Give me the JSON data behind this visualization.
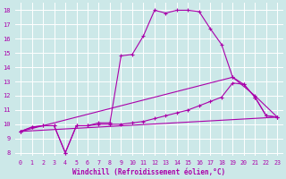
{
  "xlabel": "Windchill (Refroidissement éolien,°C)",
  "bg_color": "#cce8e8",
  "grid_color": "#ffffff",
  "line_color": "#aa00aa",
  "xlim": [
    -0.5,
    23.5
  ],
  "ylim": [
    7.8,
    18.5
  ],
  "xticks": [
    0,
    1,
    2,
    3,
    4,
    5,
    6,
    7,
    8,
    9,
    10,
    11,
    12,
    13,
    14,
    15,
    16,
    17,
    18,
    19,
    20,
    21,
    22,
    23
  ],
  "yticks": [
    8,
    9,
    10,
    11,
    12,
    13,
    14,
    15,
    16,
    17,
    18
  ],
  "curve1_x": [
    0,
    1,
    2,
    3,
    4,
    5,
    6,
    7,
    8,
    9,
    10,
    11,
    12,
    13,
    14,
    15,
    16,
    17,
    18,
    19,
    20,
    21,
    22,
    23
  ],
  "curve1_y": [
    9.5,
    9.8,
    9.9,
    9.9,
    8.0,
    9.9,
    9.9,
    10.1,
    10.1,
    14.8,
    14.9,
    16.2,
    18.0,
    17.8,
    18.0,
    18.0,
    17.9,
    16.7,
    15.6,
    13.3,
    12.8,
    11.9,
    10.6,
    10.5
  ],
  "curve2_x": [
    0,
    1,
    2,
    3,
    4,
    5,
    6,
    7,
    8,
    9,
    10,
    11,
    12,
    13,
    14,
    15,
    16,
    17,
    18,
    19,
    20,
    21,
    22,
    23
  ],
  "curve2_y": [
    9.5,
    9.8,
    9.9,
    9.9,
    8.0,
    9.9,
    9.9,
    10.0,
    10.0,
    10.0,
    10.1,
    10.2,
    10.4,
    10.6,
    10.8,
    11.0,
    11.3,
    11.6,
    11.9,
    12.9,
    12.8,
    11.9,
    10.6,
    10.5
  ],
  "curve3_x": [
    0,
    23
  ],
  "curve3_y": [
    9.5,
    10.5
  ],
  "curve4_x": [
    0,
    19,
    21,
    23
  ],
  "curve4_y": [
    9.5,
    13.3,
    12.0,
    10.5
  ]
}
